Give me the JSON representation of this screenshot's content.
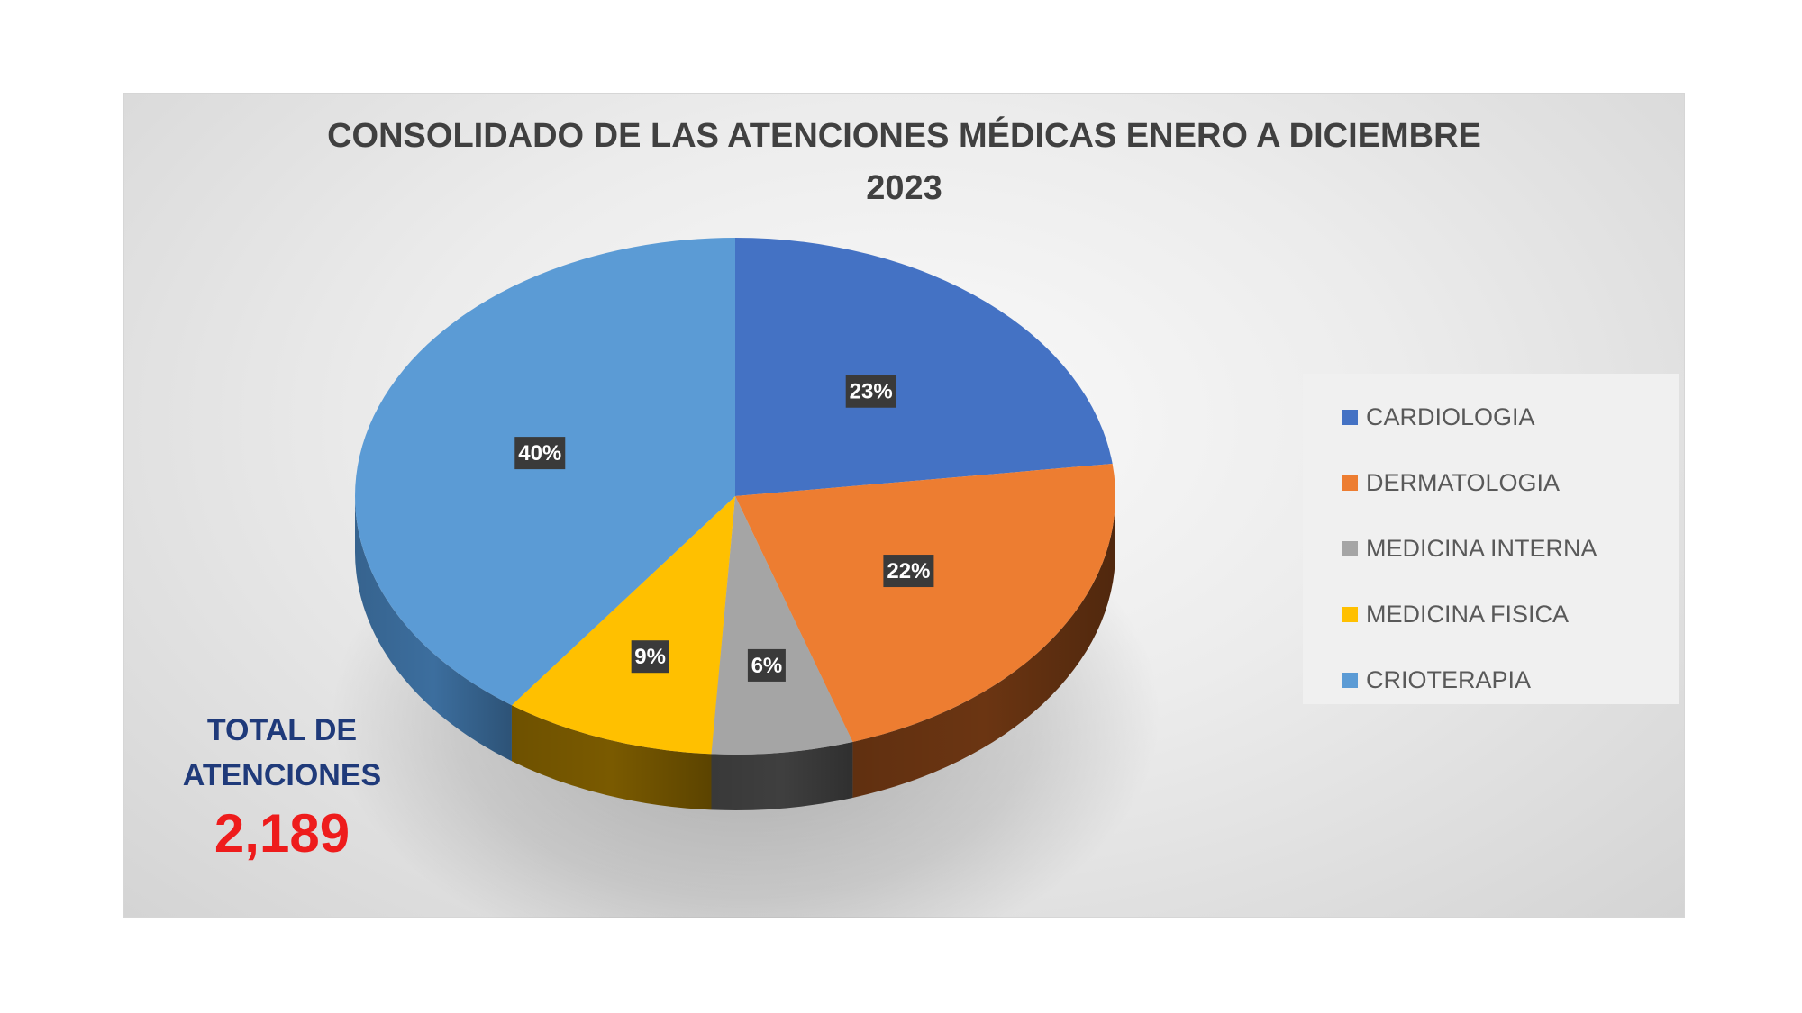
{
  "chart_data": {
    "type": "pie",
    "title_line1": "CONSOLIDADO DE LAS ATENCIONES MÉDICAS ENERO A DICIEMBRE",
    "title_line2": "2023",
    "series": [
      {
        "name": "CARDIOLOGIA",
        "value": 23,
        "label": "23%",
        "color": "#4472c4",
        "side_color": "#2f4f8a"
      },
      {
        "name": "DERMATOLOGIA",
        "value": 22,
        "label": "22%",
        "color": "#ed7d31",
        "side_color": "#6b3512"
      },
      {
        "name": "MEDICINA INTERNA",
        "value": 6,
        "label": "6%",
        "color": "#a5a5a5",
        "side_color": "#3f3f3f"
      },
      {
        "name": "MEDICINA FISICA",
        "value": 9,
        "label": "9%",
        "color": "#ffc000",
        "side_color": "#7a5a00"
      },
      {
        "name": "CRIOTERAPIA",
        "value": 40,
        "label": "40%",
        "color": "#5b9bd5",
        "side_color": "#3c6e9e"
      }
    ],
    "legend_position": "right"
  },
  "total": {
    "label_line1": "TOTAL DE",
    "label_line2": "ATENCIONES",
    "value": "2,189"
  }
}
